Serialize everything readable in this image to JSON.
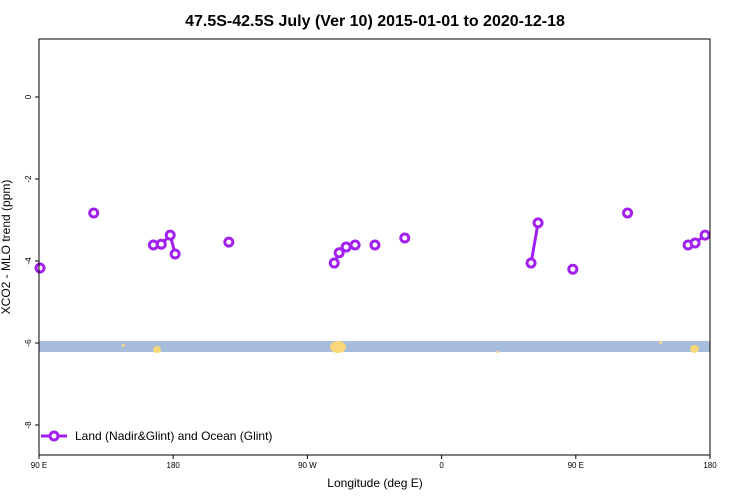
{
  "chart_data": {
    "type": "line",
    "title": "47.5S-42.5S July (Ver 10)   2015-01-01 to 2020-12-18",
    "xlabel": "Longitude (deg E)",
    "ylabel": "XCO2 - MLO trend (ppm)",
    "xlim": [
      90,
      540
    ],
    "ylim": [
      -8.7,
      1.4
    ],
    "x_ticks": [
      {
        "v": 90,
        "label": "90 E"
      },
      {
        "v": 180,
        "label": "180"
      },
      {
        "v": 270,
        "label": "90 W"
      },
      {
        "v": 360,
        "label": "0"
      },
      {
        "v": 450,
        "label": "90 E"
      },
      {
        "v": 540,
        "label": "180"
      }
    ],
    "y_ticks": [
      {
        "v": 0,
        "label": "0"
      },
      {
        "v": -2,
        "label": "-2"
      },
      {
        "v": -4,
        "label": "-4"
      },
      {
        "v": -6,
        "label": "-6"
      },
      {
        "v": -8,
        "label": "-8"
      }
    ],
    "grid": false,
    "legend_position": "bottom-left",
    "map_band": {
      "ymin": -6.22,
      "ymax": -5.95,
      "ocean_color": "#a7bddb",
      "land_color": "#fad87a"
    },
    "series": [
      {
        "name": "Land (Nadir&Glint) and Ocean (Glint)",
        "color": "#a020f0",
        "segments": [
          [
            [
              90.7,
              -4.17
            ]
          ],
          [
            [
              126.7,
              -2.83
            ]
          ],
          [
            [
              166.7,
              -3.61
            ],
            [
              172,
              -3.59
            ],
            [
              178,
              -3.37
            ],
            [
              181.3,
              -3.83
            ]
          ],
          [
            [
              217.3,
              -3.54
            ]
          ],
          [
            [
              288,
              -4.05
            ],
            [
              291.3,
              -3.8
            ],
            [
              296,
              -3.66
            ],
            [
              302,
              -3.61
            ]
          ],
          [
            [
              315.3,
              -3.61
            ]
          ],
          [
            [
              335.3,
              -3.44
            ]
          ],
          [
            [
              420,
              -4.05
            ],
            [
              424.7,
              -3.07
            ]
          ],
          [
            [
              448,
              -4.2
            ]
          ],
          [
            [
              484.7,
              -2.83
            ]
          ],
          [
            [
              525.3,
              -3.61
            ],
            [
              530,
              -3.56
            ],
            [
              536.7,
              -3.37
            ]
          ]
        ]
      }
    ]
  }
}
